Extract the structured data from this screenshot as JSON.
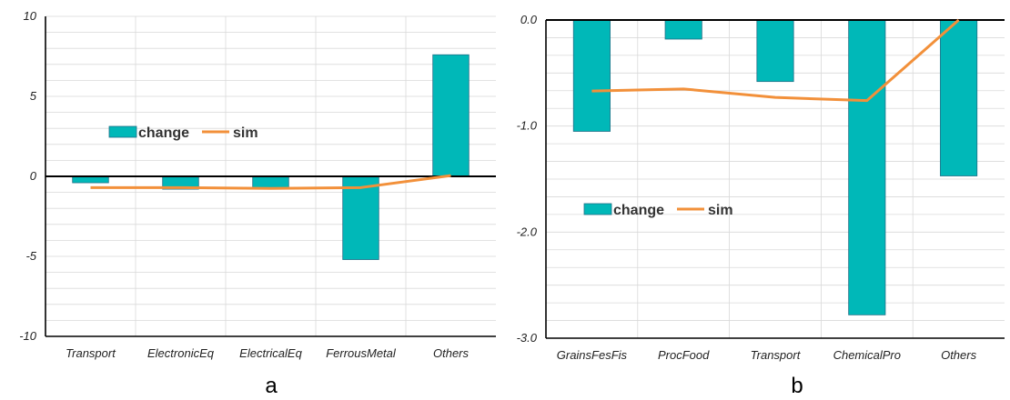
{
  "chart_data": [
    {
      "panel_label": "a",
      "type": "bar",
      "categories": [
        "Transport",
        "ElectronicEq",
        "ElectricalEq",
        "FerrousMetal",
        "Others"
      ],
      "series": [
        {
          "name": "change",
          "type": "bar",
          "values": [
            -0.4,
            -0.8,
            -0.7,
            -5.2,
            7.6
          ]
        },
        {
          "name": "sim",
          "type": "line",
          "values": [
            -0.7,
            -0.7,
            -0.75,
            -0.7,
            0.05
          ]
        }
      ],
      "ylim": [
        -10,
        10
      ],
      "yticks": [
        10,
        5,
        0,
        -5,
        -10
      ],
      "ytick_labels": [
        "10",
        "5",
        "0",
        "-5",
        "-10"
      ],
      "grid": true,
      "legend": [
        "change",
        "sim"
      ],
      "legend_position": "middle-left"
    },
    {
      "panel_label": "b",
      "type": "bar",
      "categories": [
        "GrainsFesFis",
        "ProcFood",
        "Transport",
        "ChemicalPro",
        "Others"
      ],
      "series": [
        {
          "name": "change",
          "type": "bar",
          "values": [
            -1.05,
            -0.18,
            -0.58,
            -2.78,
            -1.47
          ]
        },
        {
          "name": "sim",
          "type": "line",
          "values": [
            -0.67,
            -0.65,
            -0.73,
            -0.76,
            0.0
          ]
        }
      ],
      "ylim": [
        -3.0,
        0.0
      ],
      "yticks": [
        0.0,
        -1.0,
        -2.0,
        -3.0
      ],
      "ytick_labels": [
        "0.0",
        "-1.0",
        "-2.0",
        "-3.0"
      ],
      "grid": true,
      "legend": [
        "change",
        "sim"
      ],
      "legend_position": "lower-left"
    }
  ],
  "colors": {
    "bar_fill": "#00b8b8",
    "bar_edge": "#1f6f86",
    "line": "#f2903a",
    "grid": "#d9d9d9",
    "axis": "#000000"
  }
}
